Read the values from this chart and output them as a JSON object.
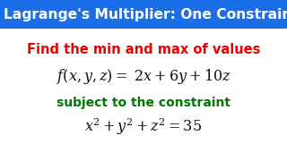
{
  "title": "Lagrange's Multiplier: One Constraint",
  "title_bg": "#1A6FE8",
  "title_color": "#FFFFFF",
  "line1": "Find the min and max of values",
  "line1_color": "#EE0000",
  "line2": "$f(x, y, z) = \\ 2x + 6y + 10z$",
  "line2_color": "#111111",
  "line3": "subject to the constraint",
  "line3_color": "#007700",
  "line4": "$x^2 + y^2 + z^2 = 35$",
  "line4_color": "#111111",
  "bg_color": "#FFFFFF"
}
